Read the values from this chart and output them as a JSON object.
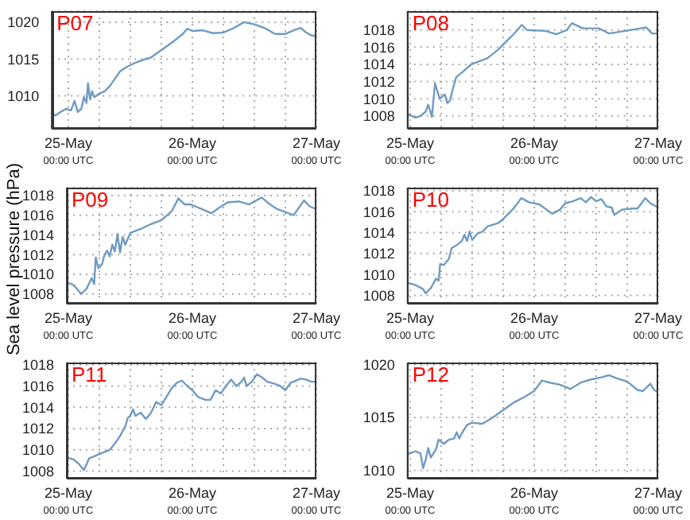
{
  "chart_data": [
    {
      "type": "line",
      "title": "P07",
      "x": [
        "--05-24T20:48",
        "--05-24T21:30",
        "--05-24T22:30",
        "--05-24T23:30",
        "--05-25T00:30",
        "--05-25T01:12",
        "--05-25T01:48",
        "--05-25T02:30",
        "--05-25T03:00",
        "--05-25T03:30",
        "--05-25T03:48",
        "--05-25T04:12",
        "--05-25T04:36",
        "--05-25T05:00",
        "--05-25T06:00",
        "--05-25T07:00",
        "--05-25T08:00",
        "--05-25T09:00",
        "--05-25T10:00",
        "--05-25T11:00",
        "--05-25T13:00",
        "--05-25T15:00",
        "--05-25T16:00",
        "--05-25T18:00",
        "--05-25T20:00",
        "--05-25T22:00",
        "--05-25T23:00",
        "--05-26T00:00",
        "--05-26T02:00",
        "--05-26T04:00",
        "--05-26T06:00",
        "--05-26T08:00",
        "--05-26T10:00",
        "--05-26T12:00",
        "--05-26T14:00",
        "--05-26T16:00",
        "--05-26T18:00",
        "--05-26T20:00",
        "--05-26T21:00",
        "--05-26T22:00",
        "--05-26T23:00",
        "--05-27T00:00"
      ],
      "series": [
        {
          "color": "#6f9bc3",
          "values": [
            1007.7,
            1007.3,
            1007.8,
            1008.2,
            1008.0,
            1009.3,
            1007.8,
            1008.2,
            1009.8,
            1009.0,
            1011.7,
            1009.5,
            1010.6,
            1009.8,
            1010.3,
            1010.6,
            1011.3,
            1012.3,
            1013.3,
            1013.8,
            1014.5,
            1015.0,
            1015.2,
            1016.2,
            1017.2,
            1018.3,
            1019.1,
            1018.8,
            1018.9,
            1018.5,
            1018.6,
            1019.2,
            1020.0,
            1019.7,
            1019.2,
            1018.4,
            1018.4,
            1019.0,
            1019.2,
            1018.6,
            1018.2,
            1018.1
          ]
        }
      ],
      "xlim": [
        "--05-24T20:48",
        "--05-27T00:00"
      ],
      "xticks": [
        {
          "value": "--05-25T00:00",
          "label": "25-May\n00:00 UTC"
        },
        {
          "value": "--05-25T06:00",
          "label": null
        },
        {
          "value": "--05-25T12:00",
          "label": null
        },
        {
          "value": "--05-25T18:00",
          "label": null
        },
        {
          "value": "--05-26T00:00",
          "label": "26-May\n00:00 UTC"
        },
        {
          "value": "--05-26T06:00",
          "label": null
        },
        {
          "value": "--05-26T12:00",
          "label": null
        },
        {
          "value": "--05-26T18:00",
          "label": null
        },
        {
          "value": "--05-27T00:00",
          "label": "27-May\n00:00 UTC"
        }
      ],
      "ylim": [
        1005.5,
        1021.5
      ],
      "yticks": [
        1010,
        1015,
        1020
      ],
      "grid": true
    },
    {
      "type": "line",
      "title": "P08",
      "x": [
        "--05-24T23:30",
        "--05-25T01:00",
        "--05-25T02:00",
        "--05-25T03:00",
        "--05-25T03:30",
        "--05-25T04:12",
        "--05-25T04:48",
        "--05-25T05:42",
        "--05-25T06:42",
        "--05-25T07:12",
        "--05-25T07:42",
        "--05-25T08:12",
        "--05-25T08:54",
        "--05-25T10:18",
        "--05-25T11:48",
        "--05-25T14:54",
        "--05-25T17:00",
        "--05-25T18:00",
        "--05-25T20:00",
        "--05-25T21:36",
        "--05-25T22:36",
        "--05-26T02:12",
        "--05-26T04:18",
        "--05-26T06:18",
        "--05-26T07:18",
        "--05-26T09:24",
        "--05-26T12:30",
        "--05-26T14:30",
        "--05-26T17:36",
        "--05-26T19:42",
        "--05-26T21:42",
        "--05-26T22:48",
        "--05-27T00:00"
      ],
      "series": [
        {
          "color": "#6f9bc3",
          "values": [
            1008.2,
            1007.8,
            1008.0,
            1008.5,
            1009.3,
            1007.9,
            1011.8,
            1010.0,
            1010.5,
            1009.5,
            1009.8,
            1011.0,
            1012.5,
            1013.2,
            1014.0,
            1014.7,
            1015.7,
            1016.3,
            1017.5,
            1018.6,
            1018.0,
            1017.9,
            1017.5,
            1018.0,
            1018.8,
            1018.2,
            1018.2,
            1017.6,
            1017.9,
            1018.1,
            1018.3,
            1017.6,
            1017.6
          ]
        }
      ],
      "xlim": [
        "--05-24T23:30",
        "--05-27T00:00"
      ],
      "xticks": [
        {
          "value": "--05-25T00:00",
          "label": "25-May\n00:00 UTC"
        },
        {
          "value": "--05-25T06:00",
          "label": null
        },
        {
          "value": "--05-25T12:00",
          "label": null
        },
        {
          "value": "--05-25T18:00",
          "label": null
        },
        {
          "value": "--05-26T00:00",
          "label": "26-May\n00:00 UTC"
        },
        {
          "value": "--05-26T06:00",
          "label": null
        },
        {
          "value": "--05-26T12:00",
          "label": null
        },
        {
          "value": "--05-26T18:00",
          "label": null
        },
        {
          "value": "--05-27T00:00",
          "label": "27-May\n00:00 UTC"
        }
      ],
      "ylim": [
        1006.5,
        1020.2
      ],
      "yticks": [
        1008,
        1010,
        1012,
        1014,
        1016,
        1018
      ],
      "grid": true
    },
    {
      "type": "line",
      "title": "P09",
      "ylabel": "Sea level pressure (hPa)",
      "x": [
        "--05-24T23:42",
        "--05-25T01:00",
        "--05-25T02:30",
        "--05-25T03:30",
        "--05-25T04:30",
        "--05-25T05:00",
        "--05-25T05:18",
        "--05-25T05:48",
        "--05-25T06:30",
        "--05-25T07:00",
        "--05-25T07:30",
        "--05-25T08:00",
        "--05-25T08:30",
        "--05-25T09:00",
        "--05-25T09:30",
        "--05-25T10:00",
        "--05-25T10:30",
        "--05-25T11:00",
        "--05-25T12:00",
        "--05-25T14:00",
        "--05-25T16:00",
        "--05-25T18:00",
        "--05-25T20:00",
        "--05-25T21:18",
        "--05-25T22:30",
        "--05-25T23:36",
        "--05-26T01:00",
        "--05-26T03:42",
        "--05-26T05:00",
        "--05-26T06:48",
        "--05-26T09:00",
        "--05-26T11:00",
        "--05-26T13:24",
        "--05-26T15:00",
        "--05-26T16:30",
        "--05-26T18:36",
        "--05-26T19:36",
        "--05-26T21:36",
        "--05-26T22:42",
        "--05-27T00:00"
      ],
      "series": [
        {
          "color": "#6f9bc3",
          "values": [
            1009.2,
            1008.9,
            1008.0,
            1008.5,
            1009.6,
            1009.0,
            1011.7,
            1010.6,
            1011.0,
            1012.0,
            1012.4,
            1011.8,
            1013.0,
            1012.3,
            1014.1,
            1012.2,
            1013.8,
            1013.0,
            1014.2,
            1014.6,
            1015.1,
            1015.5,
            1016.4,
            1017.7,
            1017.1,
            1017.1,
            1016.8,
            1016.2,
            1016.7,
            1017.3,
            1017.4,
            1017.1,
            1017.8,
            1017.1,
            1016.6,
            1016.2,
            1016.0,
            1017.5,
            1016.9,
            1016.6
          ]
        }
      ],
      "xlim": [
        "--05-24T23:42",
        "--05-27T00:00"
      ],
      "xticks": [
        {
          "value": "--05-25T00:00",
          "label": "25-May\n00:00 UTC"
        },
        {
          "value": "--05-25T06:00",
          "label": null
        },
        {
          "value": "--05-25T12:00",
          "label": null
        },
        {
          "value": "--05-25T18:00",
          "label": null
        },
        {
          "value": "--05-26T00:00",
          "label": "26-May\n00:00 UTC"
        },
        {
          "value": "--05-26T06:00",
          "label": null
        },
        {
          "value": "--05-26T12:00",
          "label": null
        },
        {
          "value": "--05-26T18:00",
          "label": null
        },
        {
          "value": "--05-27T00:00",
          "label": "27-May\n00:00 UTC"
        }
      ],
      "ylim": [
        1007,
        1018.8
      ],
      "yticks": [
        1008,
        1010,
        1012,
        1014,
        1016,
        1018
      ],
      "grid": true
    },
    {
      "type": "line",
      "title": "P10",
      "x": [
        "--05-24T23:30",
        "--05-25T01:00",
        "--05-25T02:30",
        "--05-25T03:00",
        "--05-25T04:00",
        "--05-25T05:00",
        "--05-25T05:30",
        "--05-25T05:48",
        "--05-25T06:30",
        "--05-25T07:30",
        "--05-25T08:00",
        "--05-25T09:00",
        "--05-25T10:00",
        "--05-25T10:30",
        "--05-25T11:00",
        "--05-25T11:30",
        "--05-25T12:00",
        "--05-25T13:00",
        "--05-25T14:00",
        "--05-25T15:00",
        "--05-25T17:00",
        "--05-25T18:00",
        "--05-25T20:00",
        "--05-25T21:30",
        "--05-25T23:00",
        "--05-26T01:00",
        "--05-26T03:30",
        "--05-26T05:00",
        "--05-26T06:00",
        "--05-26T07:30",
        "--05-26T09:00",
        "--05-26T10:00",
        "--05-26T11:00",
        "--05-26T12:00",
        "--05-26T13:00",
        "--05-26T14:00",
        "--05-26T15:00",
        "--05-26T15:30",
        "--05-26T17:00",
        "--05-26T19:00",
        "--05-26T20:00",
        "--05-26T21:30",
        "--05-26T22:30",
        "--05-27T00:00"
      ],
      "series": [
        {
          "color": "#6f9bc3",
          "values": [
            1009.2,
            1009.0,
            1008.6,
            1008.2,
            1008.7,
            1009.6,
            1009.4,
            1011.0,
            1010.9,
            1011.5,
            1012.5,
            1012.8,
            1013.2,
            1013.8,
            1013.2,
            1014.1,
            1013.3,
            1013.9,
            1014.1,
            1014.6,
            1014.9,
            1015.3,
            1016.3,
            1017.3,
            1016.9,
            1016.7,
            1015.8,
            1016.2,
            1016.8,
            1017.0,
            1017.3,
            1016.9,
            1017.4,
            1017.0,
            1017.2,
            1016.5,
            1016.4,
            1015.7,
            1016.2,
            1016.3,
            1016.3,
            1017.3,
            1016.8,
            1016.4
          ]
        }
      ],
      "xlim": [
        "--05-24T23:30",
        "--05-27T00:00"
      ],
      "xticks": [
        {
          "value": "--05-25T00:00",
          "label": "25-May\n00:00 UTC"
        },
        {
          "value": "--05-25T06:00",
          "label": null
        },
        {
          "value": "--05-25T12:00",
          "label": null
        },
        {
          "value": "--05-25T18:00",
          "label": null
        },
        {
          "value": "--05-26T00:00",
          "label": "26-May\n00:00 UTC"
        },
        {
          "value": "--05-26T06:00",
          "label": null
        },
        {
          "value": "--05-26T12:00",
          "label": null
        },
        {
          "value": "--05-26T18:00",
          "label": null
        },
        {
          "value": "--05-27T00:00",
          "label": "27-May\n00:00 UTC"
        }
      ],
      "ylim": [
        1007.2,
        1018.3
      ],
      "yticks": [
        1008,
        1010,
        1012,
        1014,
        1016,
        1018
      ],
      "grid": true
    },
    {
      "type": "line",
      "title": "P11",
      "x": [
        "--05-24T23:42",
        "--05-25T01:00",
        "--05-25T02:00",
        "--05-25T03:00",
        "--05-25T03:30",
        "--05-25T04:00",
        "--05-25T06:00",
        "--05-25T08:00",
        "--05-25T09:00",
        "--05-25T10:00",
        "--05-25T11:00",
        "--05-25T11:30",
        "--05-25T12:00",
        "--05-25T12:30",
        "--05-25T13:00",
        "--05-25T14:00",
        "--05-25T15:00",
        "--05-25T16:00",
        "--05-25T17:00",
        "--05-25T18:00",
        "--05-25T19:00",
        "--05-25T20:00",
        "--05-25T21:00",
        "--05-25T22:00",
        "--05-25T23:00",
        "--05-26T00:00",
        "--05-26T01:00",
        "--05-26T02:30",
        "--05-26T03:30",
        "--05-26T04:30",
        "--05-26T05:30",
        "--05-26T06:30",
        "--05-26T07:30",
        "--05-26T08:30",
        "--05-26T09:30",
        "--05-26T10:00",
        "--05-26T10:30",
        "--05-26T11:30",
        "--05-26T12:30",
        "--05-26T13:30",
        "--05-26T14:30",
        "--05-26T16:00",
        "--05-26T17:00",
        "--05-26T18:00",
        "--05-26T19:00",
        "--05-26T20:00",
        "--05-26T21:00",
        "--05-26T22:00",
        "--05-26T23:00",
        "--05-27T00:00"
      ],
      "series": [
        {
          "color": "#6f9bc3",
          "values": [
            1009.3,
            1009.1,
            1008.7,
            1008.1,
            1008.6,
            1009.2,
            1009.6,
            1010.0,
            1010.6,
            1011.3,
            1012.2,
            1013.0,
            1013.2,
            1013.8,
            1013.2,
            1013.5,
            1012.9,
            1013.5,
            1014.5,
            1014.2,
            1015.0,
            1015.8,
            1016.3,
            1016.5,
            1016.0,
            1015.6,
            1015.0,
            1014.7,
            1014.7,
            1015.6,
            1015.3,
            1016.0,
            1016.6,
            1016.0,
            1016.4,
            1016.8,
            1016.0,
            1016.4,
            1017.1,
            1016.8,
            1016.4,
            1016.2,
            1016.0,
            1015.6,
            1016.3,
            1016.5,
            1016.7,
            1016.6,
            1016.4,
            1016.4
          ]
        }
      ],
      "xlim": [
        "--05-24T23:42",
        "--05-27T00:00"
      ],
      "xticks": [
        {
          "value": "--05-25T00:00",
          "label": "25-May\n00:00 UTC"
        },
        {
          "value": "--05-25T06:00",
          "label": null
        },
        {
          "value": "--05-25T12:00",
          "label": null
        },
        {
          "value": "--05-25T18:00",
          "label": null
        },
        {
          "value": "--05-26T00:00",
          "label": "26-May\n00:00 UTC"
        },
        {
          "value": "--05-26T06:00",
          "label": null
        },
        {
          "value": "--05-26T12:00",
          "label": null
        },
        {
          "value": "--05-26T18:00",
          "label": null
        },
        {
          "value": "--05-27T00:00",
          "label": "27-May\n00:00 UTC"
        }
      ],
      "ylim": [
        1007.3,
        1018.2
      ],
      "yticks": [
        1008,
        1010,
        1012,
        1014,
        1016,
        1018
      ],
      "grid": true
    },
    {
      "type": "line",
      "title": "P12",
      "x": [
        "--05-24T23:30",
        "--05-25T01:00",
        "--05-25T02:00",
        "--05-25T02:30",
        "--05-25T03:00",
        "--05-25T03:30",
        "--05-25T04:00",
        "--05-25T05:00",
        "--05-25T05:30",
        "--05-25T06:30",
        "--05-25T07:30",
        "--05-25T08:30",
        "--05-25T09:00",
        "--05-25T09:30",
        "--05-25T10:00",
        "--05-25T11:00",
        "--05-25T12:00",
        "--05-25T14:00",
        "--05-25T16:00",
        "--05-25T18:00",
        "--05-25T20:00",
        "--05-25T22:00",
        "--05-26T00:00",
        "--05-26T01:30",
        "--05-26T03:00",
        "--05-26T05:00",
        "--05-26T07:00",
        "--05-26T09:00",
        "--05-26T11:00",
        "--05-26T13:00",
        "--05-26T14:30",
        "--05-26T16:00",
        "--05-26T18:00",
        "--05-26T20:00",
        "--05-26T21:00",
        "--05-26T22:30",
        "--05-26T23:12",
        "--05-27T00:00"
      ],
      "series": [
        {
          "color": "#6f9bc3",
          "values": [
            1011.5,
            1011.8,
            1011.6,
            1010.2,
            1011.0,
            1012.1,
            1011.2,
            1012.0,
            1012.9,
            1012.5,
            1012.9,
            1013.0,
            1013.6,
            1013.0,
            1013.5,
            1014.3,
            1014.5,
            1014.4,
            1015.0,
            1015.7,
            1016.4,
            1016.9,
            1017.5,
            1018.5,
            1018.3,
            1018.1,
            1017.7,
            1018.3,
            1018.6,
            1018.8,
            1019.0,
            1018.7,
            1018.4,
            1017.6,
            1017.5,
            1018.2,
            1017.6,
            1017.4
          ]
        }
      ],
      "xlim": [
        "--05-24T23:30",
        "--05-27T00:00"
      ],
      "xticks": [
        {
          "value": "--05-25T00:00",
          "label": "25-May\n00:00 UTC"
        },
        {
          "value": "--05-25T06:00",
          "label": null
        },
        {
          "value": "--05-25T12:00",
          "label": null
        },
        {
          "value": "--05-25T18:00",
          "label": null
        },
        {
          "value": "--05-26T00:00",
          "label": "26-May\n00:00 UTC"
        },
        {
          "value": "--05-26T06:00",
          "label": null
        },
        {
          "value": "--05-26T12:00",
          "label": null
        },
        {
          "value": "--05-26T18:00",
          "label": null
        },
        {
          "value": "--05-27T00:00",
          "label": "27-May\n00:00 UTC"
        }
      ],
      "ylim": [
        1009.2,
        1020.2
      ],
      "yticks": [
        1010,
        1015,
        1020
      ],
      "grid": true
    }
  ]
}
